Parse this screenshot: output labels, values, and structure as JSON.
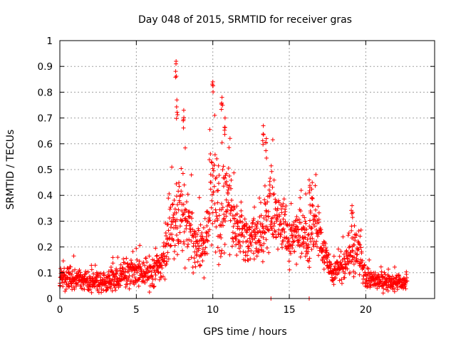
{
  "chart_data": {
    "type": "scatter",
    "title": "Day 048 of 2015, SRMTID for receiver gras",
    "xlabel": "GPS time / hours",
    "ylabel": "SRMTID / TECUs",
    "xlim": [
      0,
      24.5
    ],
    "ylim": [
      0,
      1
    ],
    "xticks": [
      0,
      5,
      10,
      15,
      20
    ],
    "xtick_labels": [
      "0",
      "5",
      "10",
      "15",
      "20"
    ],
    "yticks": [
      0,
      0.1,
      0.2,
      0.3,
      0.4,
      0.5,
      0.6,
      0.7,
      0.8,
      0.9,
      1
    ],
    "ytick_labels": [
      "0",
      "0.1",
      "0.2",
      "0.3",
      "0.4",
      "0.5",
      "0.6",
      "0.7",
      "0.8",
      "0.9",
      "1"
    ],
    "grid": true,
    "marker": "+",
    "color": "#ff0000",
    "x_range_of_data": [
      0,
      22.7
    ],
    "envelope": {
      "hours": [
        0,
        1,
        2,
        3,
        4,
        5,
        6,
        6.8,
        7.3,
        7.8,
        8.3,
        9,
        9.5,
        10,
        10.5,
        11,
        11.5,
        12.5,
        13.2,
        13.8,
        14.3,
        15,
        15.5,
        16.2,
        16.8,
        17.2,
        17.8,
        18.5,
        19.2,
        19.5,
        20,
        20.5,
        21.5,
        22.7
      ],
      "median": [
        0.07,
        0.08,
        0.07,
        0.06,
        0.09,
        0.1,
        0.1,
        0.15,
        0.3,
        0.32,
        0.3,
        0.2,
        0.22,
        0.45,
        0.3,
        0.4,
        0.26,
        0.24,
        0.22,
        0.38,
        0.3,
        0.22,
        0.25,
        0.22,
        0.3,
        0.18,
        0.1,
        0.12,
        0.2,
        0.18,
        0.08,
        0.07,
        0.06,
        0.06
      ],
      "spread": [
        0.04,
        0.04,
        0.04,
        0.04,
        0.05,
        0.05,
        0.05,
        0.06,
        0.18,
        0.16,
        0.12,
        0.08,
        0.1,
        0.2,
        0.14,
        0.16,
        0.1,
        0.08,
        0.08,
        0.14,
        0.1,
        0.08,
        0.08,
        0.09,
        0.1,
        0.06,
        0.04,
        0.06,
        0.1,
        0.07,
        0.04,
        0.03,
        0.03,
        0.03
      ]
    },
    "peaks": [
      {
        "x": 7.6,
        "y": 0.92
      },
      {
        "x": 7.65,
        "y": 0.77
      },
      {
        "x": 8.1,
        "y": 0.73
      },
      {
        "x": 10.0,
        "y": 0.84
      },
      {
        "x": 10.6,
        "y": 0.78
      },
      {
        "x": 10.8,
        "y": 0.7
      },
      {
        "x": 13.3,
        "y": 0.67
      },
      {
        "x": 13.5,
        "y": 0.62
      },
      {
        "x": 16.3,
        "y": 0.46
      },
      {
        "x": 16.5,
        "y": 0.45
      },
      {
        "x": 19.1,
        "y": 0.36
      },
      {
        "x": 13.8,
        "y": 0.0
      },
      {
        "x": 16.3,
        "y": 0.0
      }
    ],
    "num_points": 1700
  }
}
